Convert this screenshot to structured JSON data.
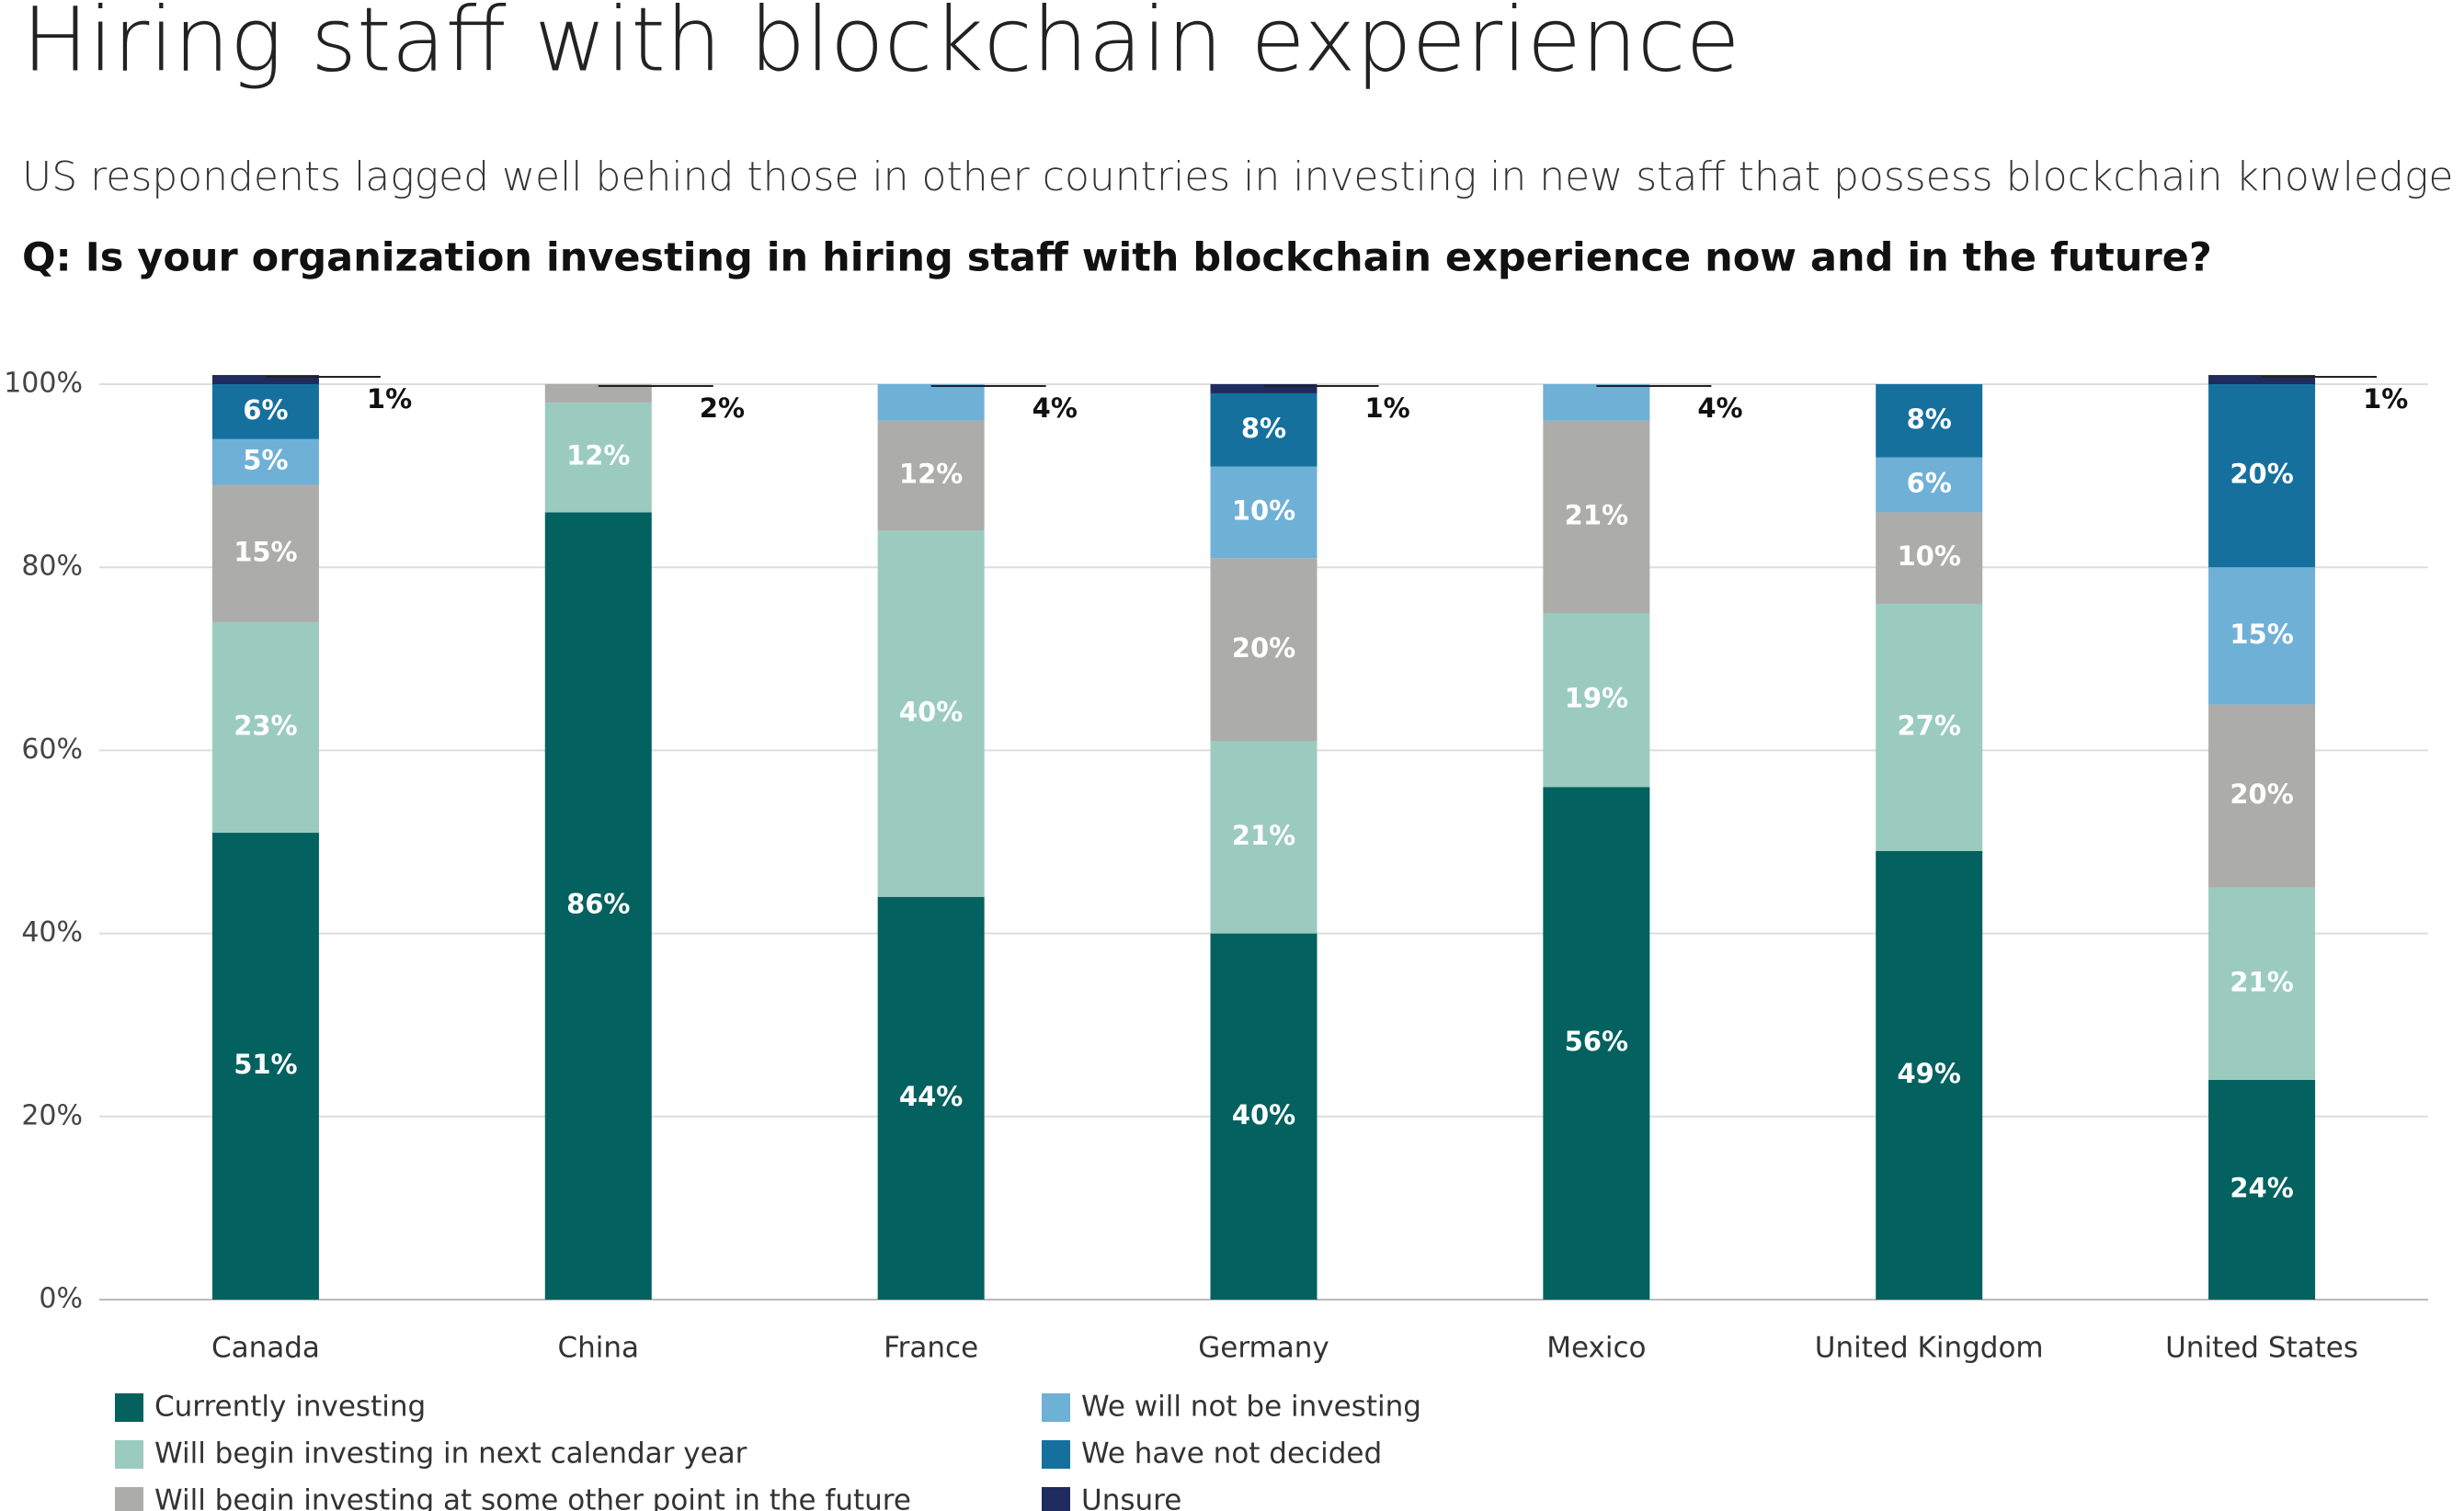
{
  "chart_data": {
    "type": "stacked-bar",
    "title": "Hiring staff with blockchain experience",
    "subtitle": "US respondents lagged well behind those in other countries in investing in new staff that possess blockchain knowledge and expertise.",
    "question": "Q: Is your organization investing in hiring staff with blockchain experience now and in the future?",
    "categories": [
      "Canada",
      "China",
      "France",
      "Germany",
      "Mexico",
      "United Kingdom",
      "United States"
    ],
    "series": [
      {
        "name": "Currently investing",
        "color": "#03615f",
        "values": [
          51,
          86,
          44,
          40,
          56,
          49,
          24
        ],
        "value_labels": [
          "51%",
          "86%",
          "44%",
          "40%",
          "56%",
          "49%",
          "24%"
        ]
      },
      {
        "name": "Will begin investing in next calendar year",
        "color": "#9bcbbf",
        "values": [
          23,
          12,
          40,
          21,
          19,
          27,
          21
        ],
        "value_labels": [
          "23%",
          "12%",
          "40%",
          "21%",
          "19%",
          "27%",
          "21%"
        ]
      },
      {
        "name": "Will begin investing at some other point in the future",
        "color": "#acacaa",
        "values": [
          15,
          2,
          12,
          20,
          21,
          10,
          20
        ],
        "value_labels": [
          "15%",
          "2%",
          "12%",
          "20%",
          "21%",
          "10%",
          "20%"
        ]
      },
      {
        "name": "We will not be investing",
        "color": "#6fb0d7",
        "values": [
          5,
          null,
          4,
          10,
          4,
          6,
          15
        ],
        "value_labels": [
          "5%",
          null,
          "4%",
          "10%",
          "4%",
          "6%",
          "15%"
        ]
      },
      {
        "name": "We have not decided",
        "color": "#16709e",
        "values": [
          6,
          null,
          null,
          8,
          null,
          8,
          20
        ],
        "value_labels": [
          "6%",
          null,
          null,
          "8%",
          null,
          "8%",
          "20%"
        ]
      },
      {
        "name": "Unsure",
        "color": "#1f2b5e",
        "values": [
          1,
          null,
          null,
          1,
          null,
          null,
          1
        ],
        "value_labels": [
          "1%",
          null,
          null,
          "1%",
          null,
          null,
          "1%"
        ]
      }
    ],
    "ylim": [
      0,
      100
    ],
    "yticks": [
      {
        "value": 0,
        "label": "0%"
      },
      {
        "value": 20,
        "label": "20%"
      },
      {
        "value": 40,
        "label": "40%"
      },
      {
        "value": 60,
        "label": "60%"
      },
      {
        "value": 80,
        "label": "80%"
      },
      {
        "value": 100,
        "label": "100%"
      }
    ],
    "grid": true
  }
}
